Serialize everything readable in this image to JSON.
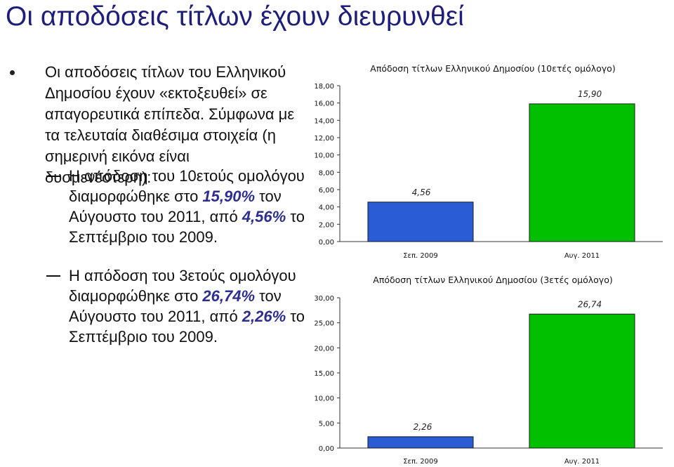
{
  "slide": {
    "title": "Οι αποδόσεις τίτλων έχουν διευρυνθεί",
    "bullet": "Οι αποδόσεις τίτλων του Ελληνικού Δημοσίου έχουν «εκτοξευθεί» σε απαγορευτικά επίπεδα. Σύμφωνα με τα τελευταία διαθέσιμα στοιχεία (η σημερινή εικόνα είναι δυσμενέστερη):",
    "sub1": {
      "pre": "Η απόδοση του 10ετούς ομολόγου διαμορφώθηκε στο ",
      "v1": "15,90%",
      "mid": " τον Αύγουστο του 2011, από ",
      "v2": "4,56%",
      "post": " το Σεπτέμβριο του 2009."
    },
    "sub2": {
      "pre": "Η απόδοση του 3ετούς ομολόγου διαμορφώθηκε στο ",
      "v1": "26,74%",
      "mid": " τον Αύγουστο του 2011, από ",
      "v2": "2,26%",
      "post": " το Σεπτέμβριο του 2009."
    }
  },
  "colors": {
    "bar": "#00c000",
    "barEdge": "#1a1a1a",
    "title": "#1f1f7a",
    "highlight": "#2e2e8f"
  },
  "chart_data": [
    {
      "type": "bar",
      "title": "Απόδοση τίτλων Ελληνικού Δημοσίου (10ετές ομόλογο)",
      "categories": [
        "Σεπ. 2009",
        "Αυγ. 2011"
      ],
      "values": [
        4.56,
        15.9
      ],
      "value_labels": [
        "4,56",
        "15,90"
      ],
      "yticks": [
        "0,00",
        "2,00",
        "4,00",
        "6,00",
        "8,00",
        "10,00",
        "12,00",
        "14,00",
        "16,00",
        "18,00"
      ],
      "ylim": [
        0,
        18
      ],
      "grid": false
    },
    {
      "type": "bar",
      "title": "Απόδοση τίτλων Ελληνικού Δημοσίου (3ετές ομόλογο)",
      "categories": [
        "Σεπ. 2009",
        "Αυγ. 2011"
      ],
      "values": [
        2.26,
        26.74
      ],
      "value_labels": [
        "2,26",
        "26,74"
      ],
      "yticks": [
        "0,00",
        "5,00",
        "10,00",
        "15,00",
        "20,00",
        "25,00",
        "30,00"
      ],
      "ylim": [
        0,
        30
      ],
      "grid": false
    }
  ]
}
